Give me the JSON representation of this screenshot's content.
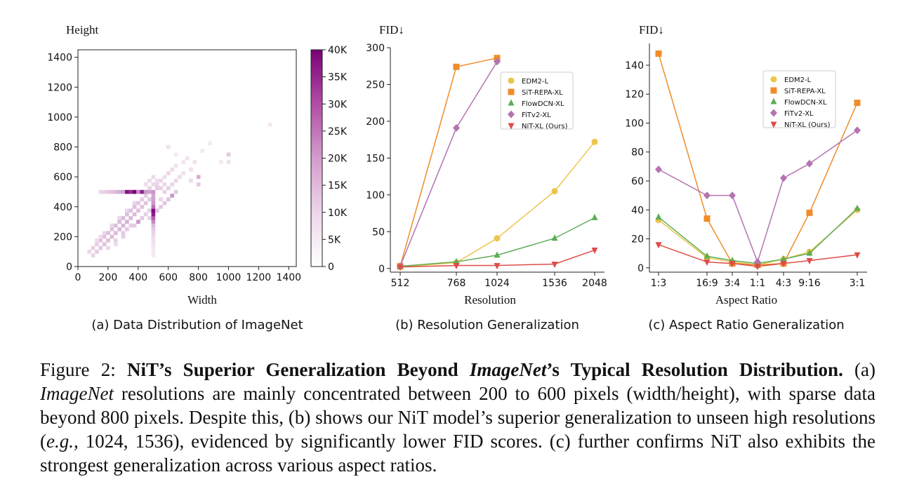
{
  "chart_data": [
    {
      "type": "heatmap",
      "title": "",
      "xlabel": "Width",
      "ylabel": "Height",
      "xlim": [
        0,
        1450
      ],
      "ylim": [
        0,
        1450
      ],
      "xticks": [
        0,
        200,
        400,
        600,
        800,
        1000,
        1200,
        1400
      ],
      "yticks": [
        0,
        200,
        400,
        600,
        800,
        1000,
        1200,
        1400
      ],
      "bin_size": 25,
      "colorbar": {
        "min": 0,
        "max": 40000,
        "ticks": [
          0,
          5000,
          10000,
          15000,
          20000,
          25000,
          30000,
          35000,
          40000
        ],
        "tick_labels": [
          "0",
          "5K",
          "10K",
          "15K",
          "20K",
          "25K",
          "30K",
          "35K",
          "40K"
        ]
      },
      "colors": {
        "low": "#ffffff",
        "mid": "#c994c7",
        "high": "#7a0177"
      },
      "cells": [
        {
          "x": 100,
          "y": 75,
          "count": 3000
        },
        {
          "x": 75,
          "y": 100,
          "count": 2500
        },
        {
          "x": 125,
          "y": 100,
          "count": 4000
        },
        {
          "x": 100,
          "y": 125,
          "count": 3500
        },
        {
          "x": 150,
          "y": 125,
          "count": 4500
        },
        {
          "x": 125,
          "y": 150,
          "count": 3500
        },
        {
          "x": 175,
          "y": 150,
          "count": 5000
        },
        {
          "x": 150,
          "y": 175,
          "count": 4500
        },
        {
          "x": 200,
          "y": 175,
          "count": 5500
        },
        {
          "x": 175,
          "y": 200,
          "count": 5000
        },
        {
          "x": 225,
          "y": 200,
          "count": 6000
        },
        {
          "x": 200,
          "y": 225,
          "count": 5500
        },
        {
          "x": 250,
          "y": 225,
          "count": 6000
        },
        {
          "x": 225,
          "y": 250,
          "count": 5000
        },
        {
          "x": 275,
          "y": 250,
          "count": 6500
        },
        {
          "x": 250,
          "y": 275,
          "count": 5500
        },
        {
          "x": 300,
          "y": 275,
          "count": 7000
        },
        {
          "x": 275,
          "y": 300,
          "count": 6000
        },
        {
          "x": 325,
          "y": 300,
          "count": 7500
        },
        {
          "x": 300,
          "y": 325,
          "count": 6000
        },
        {
          "x": 350,
          "y": 325,
          "count": 6500
        },
        {
          "x": 325,
          "y": 350,
          "count": 5500
        },
        {
          "x": 375,
          "y": 350,
          "count": 6000
        },
        {
          "x": 350,
          "y": 375,
          "count": 5500
        },
        {
          "x": 400,
          "y": 375,
          "count": 5500
        },
        {
          "x": 375,
          "y": 400,
          "count": 5500
        },
        {
          "x": 425,
          "y": 400,
          "count": 5000
        },
        {
          "x": 400,
          "y": 425,
          "count": 4500
        },
        {
          "x": 450,
          "y": 425,
          "count": 4500
        },
        {
          "x": 425,
          "y": 450,
          "count": 4000
        },
        {
          "x": 450,
          "y": 475,
          "count": 3500
        },
        {
          "x": 475,
          "y": 450,
          "count": 4000
        },
        {
          "x": 200,
          "y": 125,
          "count": 2500
        },
        {
          "x": 250,
          "y": 175,
          "count": 3000
        },
        {
          "x": 300,
          "y": 200,
          "count": 3500
        },
        {
          "x": 300,
          "y": 225,
          "count": 4000
        },
        {
          "x": 325,
          "y": 250,
          "count": 4000
        },
        {
          "x": 350,
          "y": 275,
          "count": 3500
        },
        {
          "x": 375,
          "y": 275,
          "count": 3500
        },
        {
          "x": 400,
          "y": 300,
          "count": 12000
        },
        {
          "x": 425,
          "y": 325,
          "count": 4000
        },
        {
          "x": 450,
          "y": 350,
          "count": 3500
        },
        {
          "x": 475,
          "y": 375,
          "count": 3500
        },
        {
          "x": 475,
          "y": 325,
          "count": 3000
        },
        {
          "x": 250,
          "y": 150,
          "count": 2000
        },
        {
          "x": 175,
          "y": 225,
          "count": 2500
        },
        {
          "x": 225,
          "y": 275,
          "count": 2500
        },
        {
          "x": 275,
          "y": 325,
          "count": 2500
        },
        {
          "x": 325,
          "y": 375,
          "count": 2500
        },
        {
          "x": 375,
          "y": 425,
          "count": 2500
        },
        {
          "x": 125,
          "y": 175,
          "count": 2000
        },
        {
          "x": 150,
          "y": 200,
          "count": 2000
        },
        {
          "x": 500,
          "y": 325,
          "count": 20000
        },
        {
          "x": 500,
          "y": 350,
          "count": 33000
        },
        {
          "x": 500,
          "y": 375,
          "count": 38000
        },
        {
          "x": 500,
          "y": 300,
          "count": 14000
        },
        {
          "x": 500,
          "y": 400,
          "count": 18000
        },
        {
          "x": 500,
          "y": 425,
          "count": 12000
        },
        {
          "x": 500,
          "y": 450,
          "count": 10000
        },
        {
          "x": 500,
          "y": 475,
          "count": 9000
        },
        {
          "x": 500,
          "y": 500,
          "count": 12000
        },
        {
          "x": 500,
          "y": 275,
          "count": 6000
        },
        {
          "x": 500,
          "y": 250,
          "count": 4000
        },
        {
          "x": 500,
          "y": 225,
          "count": 3000
        },
        {
          "x": 500,
          "y": 200,
          "count": 2000
        },
        {
          "x": 500,
          "y": 175,
          "count": 1500
        },
        {
          "x": 500,
          "y": 150,
          "count": 1500
        },
        {
          "x": 500,
          "y": 125,
          "count": 1000
        },
        {
          "x": 500,
          "y": 100,
          "count": 1000
        },
        {
          "x": 500,
          "y": 75,
          "count": 800
        },
        {
          "x": 200,
          "y": 500,
          "count": 4000
        },
        {
          "x": 225,
          "y": 500,
          "count": 5000
        },
        {
          "x": 250,
          "y": 500,
          "count": 6000
        },
        {
          "x": 275,
          "y": 500,
          "count": 8000
        },
        {
          "x": 300,
          "y": 500,
          "count": 10000
        },
        {
          "x": 325,
          "y": 500,
          "count": 36000
        },
        {
          "x": 350,
          "y": 500,
          "count": 30000
        },
        {
          "x": 375,
          "y": 500,
          "count": 40000
        },
        {
          "x": 400,
          "y": 500,
          "count": 14000
        },
        {
          "x": 425,
          "y": 500,
          "count": 32000
        },
        {
          "x": 450,
          "y": 500,
          "count": 12000
        },
        {
          "x": 475,
          "y": 500,
          "count": 10000
        },
        {
          "x": 150,
          "y": 500,
          "count": 2500
        },
        {
          "x": 175,
          "y": 500,
          "count": 3000
        },
        {
          "x": 525,
          "y": 375,
          "count": 5000
        },
        {
          "x": 550,
          "y": 400,
          "count": 4000
        },
        {
          "x": 575,
          "y": 425,
          "count": 4500
        },
        {
          "x": 600,
          "y": 450,
          "count": 5000
        },
        {
          "x": 625,
          "y": 475,
          "count": 12000
        },
        {
          "x": 650,
          "y": 500,
          "count": 4000
        },
        {
          "x": 550,
          "y": 450,
          "count": 3000
        },
        {
          "x": 575,
          "y": 500,
          "count": 3000
        },
        {
          "x": 600,
          "y": 525,
          "count": 3500
        },
        {
          "x": 625,
          "y": 550,
          "count": 2500
        },
        {
          "x": 650,
          "y": 575,
          "count": 2500
        },
        {
          "x": 675,
          "y": 600,
          "count": 2000
        },
        {
          "x": 525,
          "y": 550,
          "count": 2500
        },
        {
          "x": 550,
          "y": 575,
          "count": 2500
        },
        {
          "x": 575,
          "y": 600,
          "count": 2000
        },
        {
          "x": 600,
          "y": 625,
          "count": 2500
        },
        {
          "x": 625,
          "y": 650,
          "count": 2000
        },
        {
          "x": 575,
          "y": 550,
          "count": 2500
        },
        {
          "x": 550,
          "y": 525,
          "count": 3000
        },
        {
          "x": 525,
          "y": 525,
          "count": 3500
        },
        {
          "x": 525,
          "y": 575,
          "count": 2000
        },
        {
          "x": 475,
          "y": 525,
          "count": 3000
        },
        {
          "x": 450,
          "y": 550,
          "count": 2000
        },
        {
          "x": 500,
          "y": 550,
          "count": 2500
        },
        {
          "x": 475,
          "y": 575,
          "count": 2000
        },
        {
          "x": 500,
          "y": 600,
          "count": 2000
        },
        {
          "x": 800,
          "y": 600,
          "count": 8000
        },
        {
          "x": 800,
          "y": 550,
          "count": 4000
        },
        {
          "x": 750,
          "y": 575,
          "count": 2000
        },
        {
          "x": 700,
          "y": 625,
          "count": 1500
        },
        {
          "x": 750,
          "y": 650,
          "count": 1500
        },
        {
          "x": 775,
          "y": 700,
          "count": 1500
        },
        {
          "x": 650,
          "y": 675,
          "count": 1500
        },
        {
          "x": 700,
          "y": 700,
          "count": 1200
        },
        {
          "x": 725,
          "y": 725,
          "count": 1500
        },
        {
          "x": 825,
          "y": 775,
          "count": 1000
        },
        {
          "x": 875,
          "y": 825,
          "count": 1000
        },
        {
          "x": 1000,
          "y": 750,
          "count": 4000
        },
        {
          "x": 1000,
          "y": 700,
          "count": 1500
        },
        {
          "x": 950,
          "y": 700,
          "count": 1200
        },
        {
          "x": 600,
          "y": 800,
          "count": 1500
        },
        {
          "x": 650,
          "y": 750,
          "count": 1000
        },
        {
          "x": 1275,
          "y": 950,
          "count": 1200
        }
      ]
    },
    {
      "type": "line",
      "title": "",
      "xlabel": "Resolution",
      "ylabel": "FID↓",
      "categories": [
        "512",
        "768",
        "1024",
        "1536",
        "2048"
      ],
      "ylim": [
        -5,
        300
      ],
      "yticks": [
        0,
        50,
        100,
        150,
        200,
        250,
        300
      ],
      "legend": "top-right",
      "series": [
        {
          "name": "EDM2-L",
          "marker": "circle",
          "color": "#ecc54c",
          "values": [
            2,
            8,
            41,
            105,
            172
          ]
        },
        {
          "name": "SiT-REPA-XL",
          "marker": "square",
          "color": "#f08c2b",
          "values": [
            3,
            274,
            286,
            null,
            null
          ]
        },
        {
          "name": "FlowDCN-XL",
          "marker": "triangle-up",
          "color": "#5dad57",
          "values": [
            3,
            9,
            18,
            41,
            69
          ]
        },
        {
          "name": "FiTv2-XL",
          "marker": "diamond",
          "color": "#b374b1",
          "values": [
            3,
            191,
            281,
            null,
            null
          ]
        },
        {
          "name": "NiT-XL (Ours)",
          "marker": "triangle-down",
          "color": "#de4c47",
          "values": [
            2,
            4,
            4,
            6,
            25
          ]
        }
      ]
    },
    {
      "type": "line",
      "title": "",
      "xlabel": "Aspect Ratio",
      "ylabel": "FID↓",
      "categories": [
        "1:3",
        "16:9",
        "3:4",
        "1:1",
        "4:3",
        "9:16",
        "3:1"
      ],
      "ylim": [
        -3,
        155
      ],
      "yticks": [
        0,
        20,
        40,
        60,
        80,
        100,
        120,
        140
      ],
      "legend": "top-right",
      "series": [
        {
          "name": "EDM2-L",
          "marker": "circle",
          "color": "#ecc54c",
          "values": [
            33,
            7,
            4,
            2,
            6,
            11,
            40
          ]
        },
        {
          "name": "SiT-REPA-XL",
          "marker": "square",
          "color": "#f08c2b",
          "values": [
            148,
            34,
            3,
            2,
            3,
            38,
            114
          ]
        },
        {
          "name": "FlowDCN-XL",
          "marker": "triangle-up",
          "color": "#5dad57",
          "values": [
            35,
            8,
            5,
            3,
            6,
            10,
            41
          ]
        },
        {
          "name": "FiTv2-XL",
          "marker": "diamond",
          "color": "#b374b1",
          "values": [
            68,
            50,
            50,
            4,
            62,
            72,
            95
          ]
        },
        {
          "name": "NiT-XL (Ours)",
          "marker": "triangle-down",
          "color": "#de4c47",
          "values": [
            16,
            4,
            3,
            1,
            3,
            5,
            9
          ]
        }
      ]
    }
  ],
  "subcaptions": {
    "a": "(a) Data Distribution of ImageNet",
    "b": "(b) Resolution Generalization",
    "c": "(c) Aspect Ratio Generalization"
  },
  "caption": {
    "label": "Figure 2: ",
    "bold_1": "NiT’s Superior Generalization Beyond ",
    "bold_italic": "ImageNet",
    "bold_2": "’s Typical Resolution Distribution.",
    "text_1": " (a) ",
    "italic_1": "ImageNet",
    "text_2": " resolutions are mainly concentrated between 200 to 600 pixels (width/height), with sparse data beyond 800 pixels. Despite this, (b) shows our NiT model’s superior generalization to unseen high resolutions (",
    "italic_2": "e.g.",
    "text_3": ", 1024, 1536), evidenced by significantly lower FID scores. (c) further confirms NiT also exhibits the strongest generalization across various aspect ratios."
  }
}
